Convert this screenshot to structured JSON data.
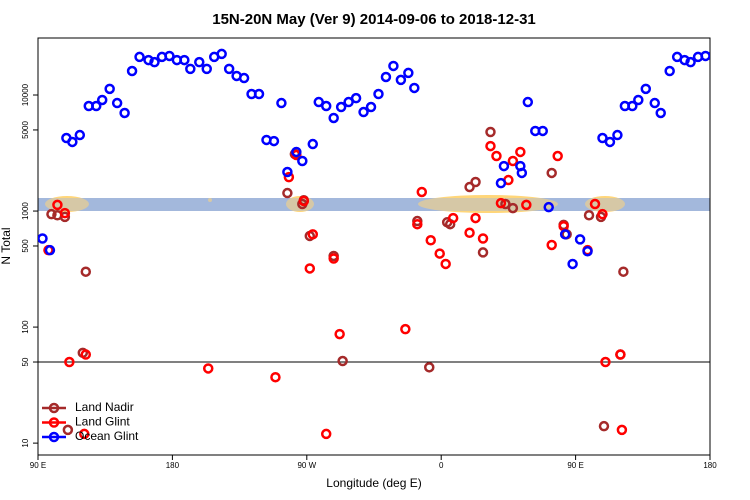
{
  "chart_data": {
    "type": "scatter",
    "title": "15N-20N May (Ver 9)   2014-09-06 to 2018-12-31",
    "x_label": "Longitude (deg E)",
    "y_label": "N Total",
    "log_y": true,
    "legend": "lower left",
    "xlim": [
      90,
      540
    ],
    "ylim": [
      7.9,
      31000
    ],
    "xticks": [
      {
        "value": 90,
        "label": "90 E"
      },
      {
        "value": 180,
        "label": "180"
      },
      {
        "value": 270,
        "label": "90 W"
      },
      {
        "value": 360,
        "label": "0"
      },
      {
        "value": 450,
        "label": "90 E"
      },
      {
        "value": 540,
        "label": "180"
      }
    ],
    "yticks": [
      10,
      50,
      100,
      500,
      1000,
      5000,
      10000
    ],
    "reference_line": 50,
    "series": [
      {
        "name": "Land Nadir",
        "color": "#a52a2a",
        "x": [
          99,
          103,
          108,
          122,
          110,
          120,
          257,
          262,
          267,
          268,
          272,
          288,
          294,
          344,
          352,
          364,
          366,
          379,
          383,
          388,
          393,
          403,
          408,
          434,
          442,
          444,
          459,
          467,
          482,
          469,
          480
        ],
        "y": [
          940,
          920,
          890,
          300,
          13,
          60,
          1430,
          3100,
          1150,
          1240,
          610,
          410,
          51,
          820,
          45,
          800,
          770,
          1610,
          1780,
          440,
          4800,
          1150,
          1060,
          2130,
          760,
          630,
          920,
          890,
          300,
          14,
          58
        ]
      },
      {
        "name": "Land Glint",
        "color": "#ff0000",
        "x": [
          97,
          103,
          108,
          111,
          122,
          121,
          204,
          249,
          258,
          263,
          268,
          272,
          274,
          288,
          292,
          283,
          336,
          344,
          347,
          353,
          359,
          363,
          368,
          379,
          383,
          388,
          393,
          397,
          400,
          405,
          408,
          413,
          417,
          434,
          438,
          442,
          458,
          463,
          468,
          470,
          480,
          481
        ],
        "y": [
          460,
          1130,
          960,
          50,
          58,
          12,
          44,
          37,
          1960,
          3040,
          1220,
          320,
          630,
          390,
          87,
          12,
          96,
          770,
          1460,
          560,
          430,
          350,
          870,
          650,
          870,
          580,
          3630,
          2980,
          1170,
          1850,
          2700,
          3230,
          1130,
          510,
          2980,
          740,
          460,
          1150,
          940,
          50,
          58,
          13
        ]
      },
      {
        "name": "Ocean Glint",
        "color": "#0000ff",
        "x": [
          93,
          98,
          109,
          113,
          118,
          124,
          129,
          133,
          138,
          143,
          148,
          153,
          158,
          164,
          168,
          173,
          178,
          183,
          188,
          192,
          198,
          203,
          208,
          213,
          218,
          223,
          228,
          233,
          238,
          243,
          248,
          253,
          257,
          263,
          267,
          274,
          278,
          283,
          288,
          293,
          298,
          303,
          308,
          313,
          318,
          323,
          328,
          333,
          338,
          342,
          400,
          402,
          413,
          414,
          418,
          423,
          428,
          432,
          443,
          448,
          453,
          458,
          468,
          473,
          478,
          483,
          488,
          492,
          497,
          503,
          507,
          513,
          518,
          523,
          527,
          532,
          537
        ],
        "y": [
          580,
          460,
          4260,
          3940,
          4520,
          8040,
          8040,
          9060,
          11300,
          8530,
          7000,
          16100,
          21300,
          20000,
          19200,
          21300,
          21700,
          20000,
          20000,
          16800,
          19200,
          16800,
          21300,
          22600,
          16800,
          14600,
          14000,
          10200,
          10200,
          4100,
          4010,
          8530,
          2170,
          3230,
          2700,
          3780,
          8700,
          8040,
          6340,
          7880,
          8700,
          9400,
          7130,
          7880,
          10200,
          14300,
          17800,
          13500,
          15500,
          11500,
          1740,
          2440,
          2440,
          2130,
          8700,
          4900,
          4900,
          1080,
          630,
          350,
          570,
          450,
          4260,
          3940,
          4520,
          8040,
          8040,
          9060,
          11300,
          8530,
          7000,
          16100,
          21300,
          20000,
          19200,
          21300,
          21700
        ]
      }
    ]
  }
}
